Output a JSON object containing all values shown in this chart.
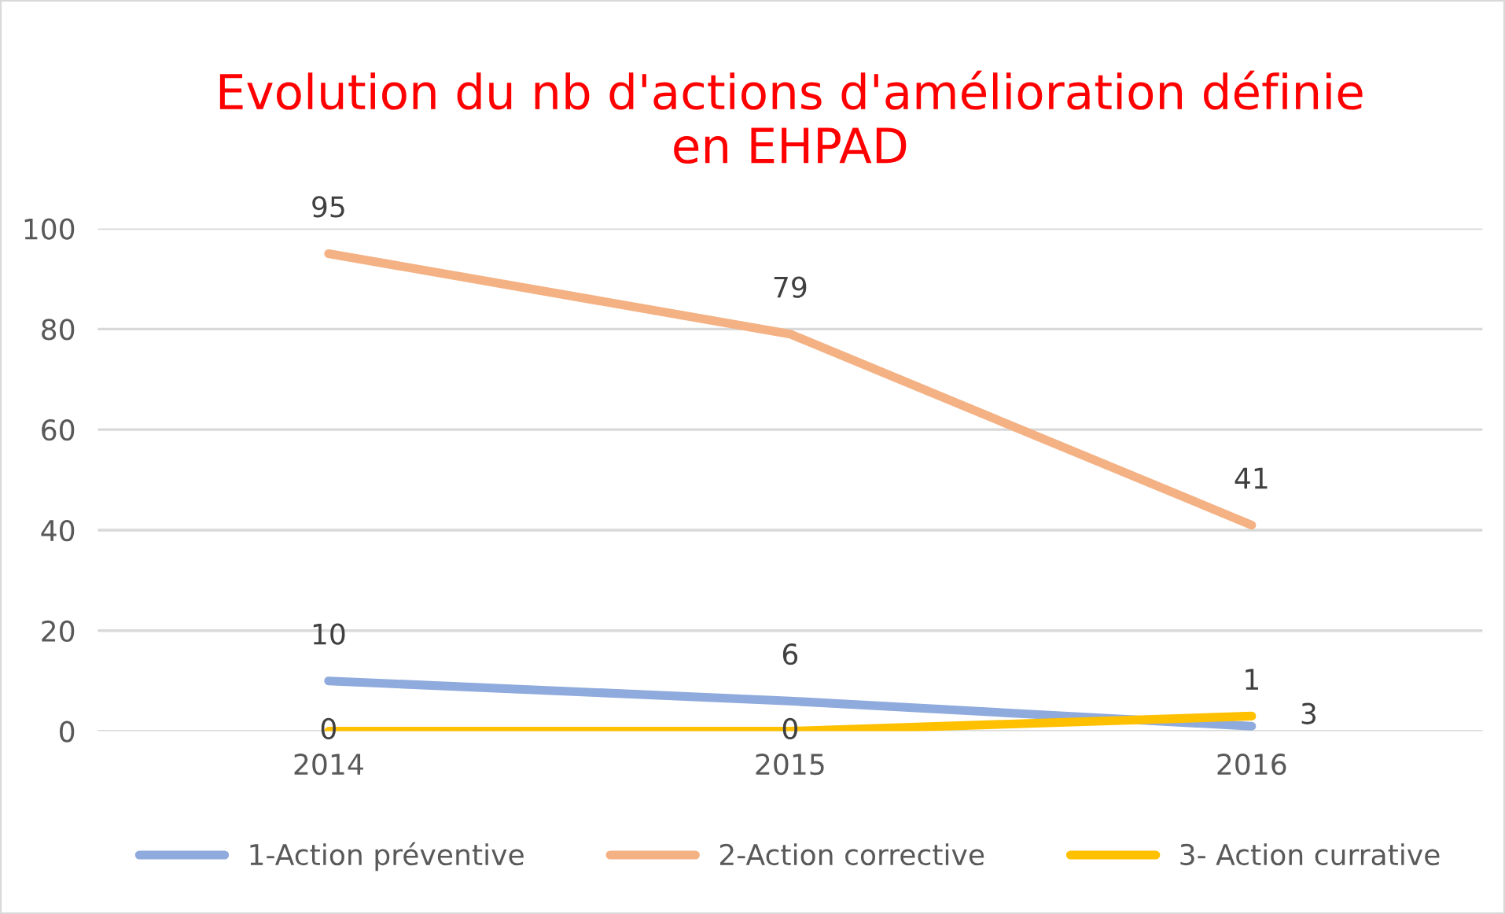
{
  "chart_data": {
    "type": "line",
    "title": "Evolution du nb d'actions d'amélioration définie\nen EHPAD",
    "categories": [
      "2014",
      "2015",
      "2016"
    ],
    "series": [
      {
        "name": "1-Action préventive",
        "color": "#8faadc",
        "values": [
          10,
          6,
          1
        ]
      },
      {
        "name": "2-Action corrective",
        "color": "#f4b183",
        "values": [
          95,
          79,
          41
        ]
      },
      {
        "name": "3- Action currative",
        "color": "#ffc000",
        "values": [
          0,
          0,
          3
        ]
      }
    ],
    "ylim": [
      0,
      100
    ],
    "yticks": [
      0,
      20,
      40,
      60,
      80,
      100
    ],
    "grid": "y",
    "legend": "bottom",
    "data_labels": true,
    "marker": "none",
    "line_style": "solid"
  }
}
